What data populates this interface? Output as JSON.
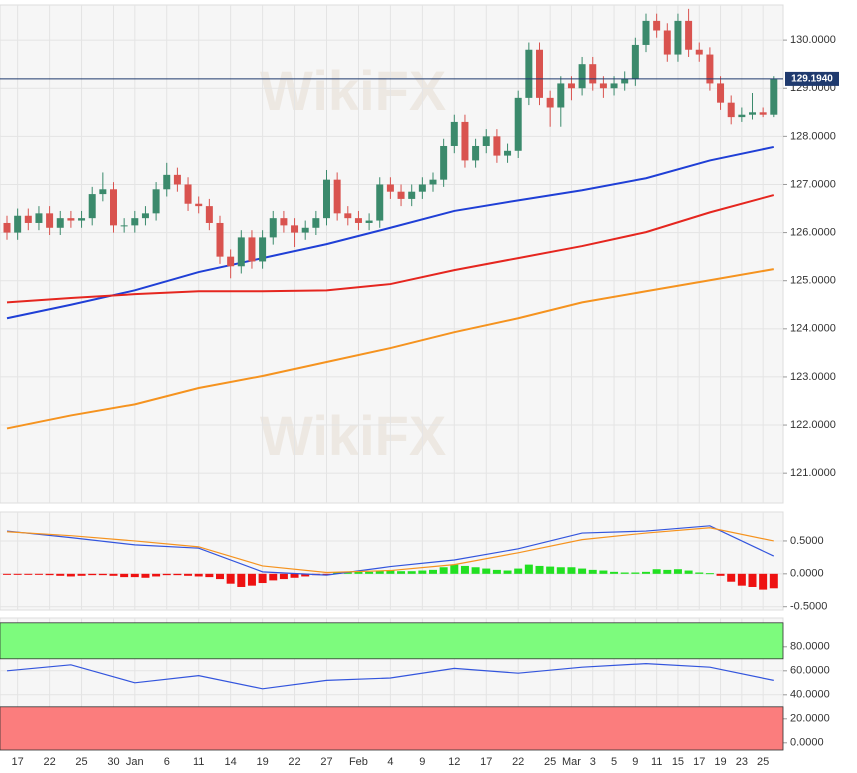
{
  "watermark": "WikiFX",
  "chart_data": [
    {
      "type": "candlestick",
      "ylim": [
        120.38,
        130.73
      ],
      "yticks": [
        {
          "value": 121,
          "label": "121.0000"
        },
        {
          "value": 122,
          "label": "122.0000"
        },
        {
          "value": 123,
          "label": "123.0000"
        },
        {
          "value": 124,
          "label": "124.0000"
        },
        {
          "value": 125,
          "label": "125.0000"
        },
        {
          "value": 126,
          "label": "126.0000"
        },
        {
          "value": 127,
          "label": "127.0000"
        },
        {
          "value": 128,
          "label": "128.0000"
        },
        {
          "value": 129,
          "label": "129.0000"
        },
        {
          "value": 130,
          "label": "130.0000"
        }
      ],
      "grid": true,
      "up_color": "#3b8a6c",
      "down_color": "#d9534f",
      "categories": [
        null,
        "17",
        null,
        null,
        "22",
        null,
        null,
        "25",
        null,
        null,
        "30",
        null,
        "Jan",
        null,
        null,
        "6",
        null,
        null,
        "11",
        null,
        null,
        "14",
        null,
        null,
        "19",
        null,
        null,
        "22",
        null,
        null,
        "27",
        null,
        null,
        "Feb",
        null,
        null,
        "4",
        null,
        null,
        "9",
        null,
        null,
        "12",
        null,
        null,
        "17",
        null,
        null,
        "22",
        null,
        null,
        "25",
        null,
        "Mar",
        null,
        "3",
        null,
        "5",
        null,
        "9",
        null,
        "11",
        null,
        "15",
        null,
        "17",
        null,
        "19",
        null,
        "23",
        null,
        "25",
        null
      ],
      "open": [
        126.2,
        126.0,
        126.35,
        126.2,
        126.4,
        126.1,
        126.3,
        126.25,
        126.3,
        126.8,
        126.9,
        126.15,
        126.15,
        126.3,
        126.4,
        126.9,
        127.2,
        127.0,
        126.6,
        126.55,
        126.2,
        125.5,
        125.3,
        125.9,
        125.4,
        125.9,
        126.3,
        126.15,
        126.0,
        126.1,
        126.3,
        127.1,
        126.4,
        126.3,
        126.2,
        126.25,
        127.0,
        126.85,
        126.7,
        126.85,
        127.0,
        127.1,
        127.8,
        128.3,
        127.5,
        127.8,
        128.0,
        127.6,
        127.7,
        128.8,
        129.8,
        128.8,
        128.6,
        129.1,
        129.0,
        129.5,
        129.1,
        129.0,
        129.1,
        129.2,
        129.9,
        130.4,
        130.2,
        129.7,
        130.4,
        129.8,
        129.7,
        129.1,
        128.7,
        128.4,
        128.45,
        128.5,
        128.45
      ],
      "high": [
        126.35,
        126.5,
        126.5,
        126.55,
        126.55,
        126.45,
        126.45,
        126.45,
        126.95,
        127.25,
        127.05,
        126.3,
        126.45,
        126.55,
        127.05,
        127.45,
        127.35,
        127.15,
        126.75,
        126.7,
        126.35,
        125.65,
        126.05,
        126.05,
        126.05,
        126.45,
        126.45,
        126.3,
        126.25,
        126.45,
        127.3,
        127.25,
        126.55,
        126.45,
        126.4,
        127.15,
        127.15,
        127.0,
        127.0,
        127.15,
        127.25,
        127.95,
        128.45,
        128.45,
        127.95,
        128.15,
        128.15,
        127.85,
        128.95,
        129.95,
        129.95,
        128.95,
        129.25,
        129.25,
        129.65,
        129.65,
        129.25,
        129.25,
        129.35,
        130.05,
        130.55,
        130.55,
        130.35,
        130.55,
        130.65,
        129.95,
        129.85,
        129.25,
        128.85,
        128.6,
        128.9,
        128.6,
        129.25
      ],
      "low": [
        125.85,
        125.85,
        126.05,
        126.05,
        125.95,
        125.95,
        126.1,
        126.1,
        126.15,
        126.65,
        126.0,
        126.0,
        126.0,
        126.15,
        126.25,
        126.75,
        126.85,
        126.45,
        126.4,
        126.05,
        125.35,
        125.05,
        125.15,
        125.25,
        125.25,
        125.75,
        126.0,
        125.7,
        125.85,
        125.95,
        126.15,
        126.25,
        126.15,
        126.05,
        126.05,
        126.1,
        126.7,
        126.55,
        126.55,
        126.7,
        126.85,
        126.95,
        127.65,
        127.35,
        127.35,
        127.65,
        127.45,
        127.45,
        127.55,
        128.65,
        128.65,
        128.2,
        128.2,
        128.75,
        128.85,
        128.95,
        128.8,
        128.85,
        128.95,
        129.05,
        129.75,
        130.05,
        129.55,
        129.55,
        129.65,
        129.55,
        128.95,
        128.55,
        128.25,
        128.3,
        128.35,
        128.4,
        128.4
      ],
      "close": [
        126.0,
        126.35,
        126.2,
        126.4,
        126.1,
        126.3,
        126.25,
        126.3,
        126.8,
        126.9,
        126.15,
        126.15,
        126.3,
        126.4,
        126.9,
        127.2,
        127.0,
        126.6,
        126.55,
        126.2,
        125.5,
        125.3,
        125.9,
        125.4,
        125.9,
        126.3,
        126.15,
        126.0,
        126.1,
        126.3,
        127.1,
        126.4,
        126.3,
        126.2,
        126.25,
        127.0,
        126.85,
        126.7,
        126.85,
        127.0,
        127.1,
        127.8,
        128.3,
        127.5,
        127.8,
        128.0,
        127.6,
        127.7,
        128.8,
        129.8,
        128.8,
        128.6,
        129.1,
        129.0,
        129.5,
        129.1,
        129.0,
        129.1,
        129.2,
        129.9,
        130.4,
        130.2,
        129.7,
        130.4,
        129.8,
        129.7,
        129.1,
        128.7,
        128.4,
        128.45,
        128.5,
        128.45,
        129.19
      ],
      "lines": [
        {
          "color": "#1f3fd6",
          "x": [
            0,
            6,
            12,
            18,
            24,
            30,
            36,
            42,
            48,
            54,
            60,
            66,
            72
          ],
          "values": [
            124.22,
            124.5,
            124.8,
            125.18,
            125.47,
            125.76,
            126.1,
            126.45,
            126.67,
            126.88,
            127.13,
            127.5,
            127.78
          ]
        },
        {
          "color": "#e5261f",
          "x": [
            0,
            6,
            12,
            18,
            24,
            30,
            36,
            42,
            48,
            54,
            60,
            66,
            72
          ],
          "values": [
            124.55,
            124.64,
            124.72,
            124.78,
            124.78,
            124.8,
            124.93,
            125.22,
            125.47,
            125.72,
            126.01,
            126.42,
            126.78
          ]
        },
        {
          "color": "#f5931f",
          "x": [
            0,
            6,
            12,
            18,
            24,
            30,
            36,
            42,
            48,
            54,
            60,
            66,
            72
          ],
          "values": [
            121.93,
            122.2,
            122.43,
            122.77,
            123.02,
            123.31,
            123.6,
            123.93,
            124.22,
            124.55,
            124.78,
            125.01,
            125.24
          ]
        }
      ],
      "last_price": {
        "value": 129.194,
        "label": "129.1940"
      },
      "last_price_color": "#1f3a6e"
    },
    {
      "type": "macd",
      "ylim": [
        -0.55,
        0.94
      ],
      "yticks": [
        {
          "value": -0.5,
          "label": "-0.5000"
        },
        {
          "value": 0,
          "label": "0.0000"
        },
        {
          "value": 0.5,
          "label": "0.5000"
        }
      ],
      "grid": true,
      "pos_color": "#22e022",
      "neg_color": "#ee1111",
      "histogram": [
        -0.01,
        -0.01,
        -0.01,
        -0.01,
        -0.02,
        -0.03,
        -0.04,
        -0.03,
        -0.02,
        -0.02,
        -0.03,
        -0.05,
        -0.05,
        -0.06,
        -0.04,
        -0.02,
        -0.02,
        -0.03,
        -0.04,
        -0.05,
        -0.08,
        -0.15,
        -0.2,
        -0.18,
        -0.14,
        -0.1,
        -0.08,
        -0.06,
        -0.04,
        -0.02,
        -0.01,
        0.02,
        0.03,
        0.03,
        0.03,
        0.05,
        0.05,
        0.04,
        0.04,
        0.05,
        0.06,
        0.1,
        0.14,
        0.12,
        0.1,
        0.08,
        0.06,
        0.05,
        0.08,
        0.14,
        0.12,
        0.11,
        0.1,
        0.1,
        0.08,
        0.06,
        0.05,
        0.03,
        0.02,
        0.02,
        0.03,
        0.07,
        0.06,
        0.07,
        0.05,
        0.02,
        0.01,
        -0.03,
        -0.12,
        -0.18,
        -0.2,
        -0.24,
        -0.22
      ],
      "lines": [
        {
          "color": "#3355dd",
          "x": [
            0,
            6,
            12,
            18,
            24,
            30,
            36,
            42,
            48,
            54,
            60,
            66,
            72
          ],
          "values": [
            0.65,
            0.55,
            0.44,
            0.39,
            0.03,
            -0.02,
            0.11,
            0.21,
            0.38,
            0.62,
            0.65,
            0.73,
            0.27
          ]
        },
        {
          "color": "#f5931f",
          "x": [
            0,
            6,
            12,
            18,
            24,
            30,
            36,
            42,
            48,
            54,
            60,
            66,
            72
          ],
          "values": [
            0.64,
            0.58,
            0.5,
            0.41,
            0.12,
            0.02,
            0.05,
            0.14,
            0.32,
            0.52,
            0.62,
            0.7,
            0.5
          ]
        }
      ]
    },
    {
      "type": "line",
      "ylim": [
        -6,
        104
      ],
      "yticks": [
        {
          "value": 0,
          "label": "0.0000"
        },
        {
          "value": 20,
          "label": "20.0000"
        },
        {
          "value": 40,
          "label": "40.0000"
        },
        {
          "value": 60,
          "label": "60.0000"
        },
        {
          "value": 80,
          "label": "80.0000"
        }
      ],
      "grid": true,
      "zones": [
        {
          "from": 70,
          "to": 100,
          "color": "#7dfb7d"
        },
        {
          "from": -6,
          "to": 30,
          "color": "#fb7d7d"
        }
      ],
      "lines": [
        {
          "color": "#3355dd",
          "x": [
            0,
            6,
            12,
            18,
            24,
            30,
            36,
            42,
            48,
            54,
            60,
            66,
            72
          ],
          "values": [
            60,
            65,
            50,
            56,
            45,
            52,
            54,
            62,
            58,
            63,
            66,
            63,
            52
          ]
        }
      ]
    }
  ]
}
